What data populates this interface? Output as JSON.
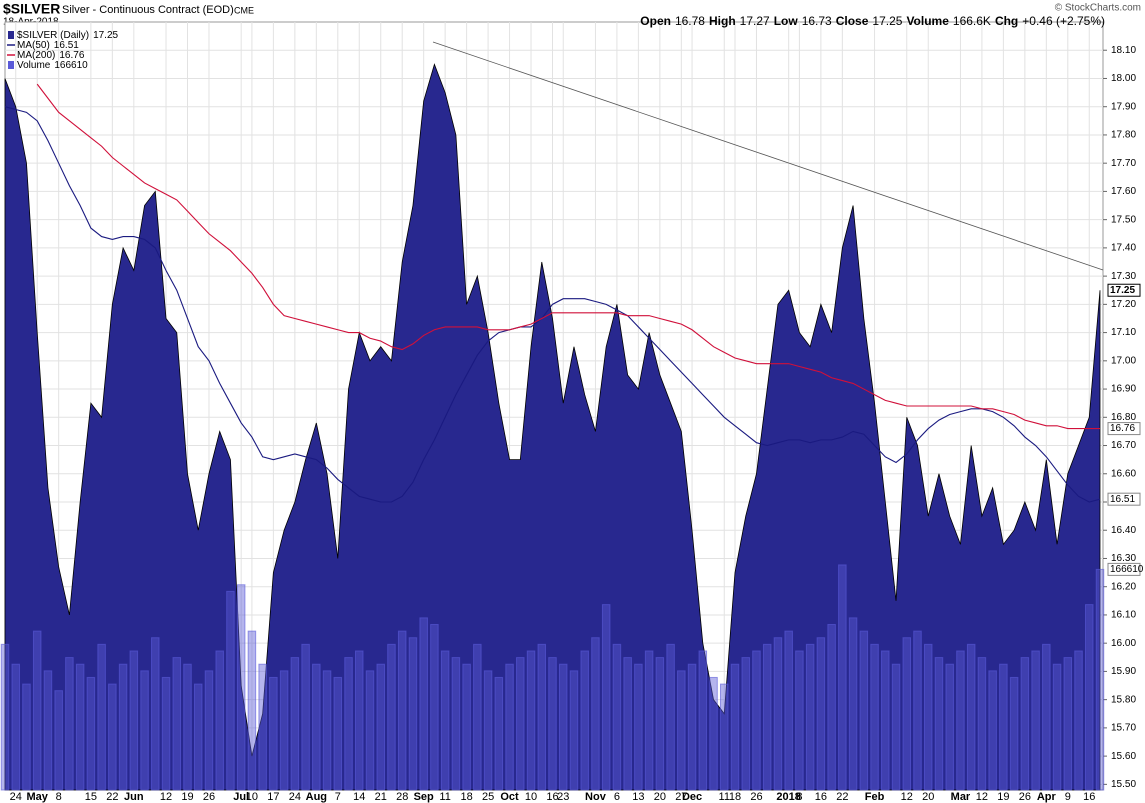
{
  "header": {
    "symbol": "$SILVER",
    "name": "Silver - Continuous Contract (EOD)",
    "exchange": "CME",
    "date": "18-Apr-2018",
    "copyright": "© StockCharts.com",
    "quote": [
      {
        "label": "Open",
        "value": "16.78"
      },
      {
        "label": "High",
        "value": "17.27"
      },
      {
        "label": "Low",
        "value": "16.73"
      },
      {
        "label": "Close",
        "value": "17.25"
      },
      {
        "label": "Volume",
        "value": "166.6K"
      },
      {
        "label": "Chg",
        "value": "+0.46 (+2.75%)"
      }
    ]
  },
  "chart_data": {
    "type": "area",
    "categories": [
      null,
      "24",
      null,
      "May",
      null,
      "8",
      null,
      null,
      "15",
      null,
      "22",
      null,
      "Jun",
      null,
      null,
      "12",
      null,
      "19",
      null,
      "26",
      null,
      null,
      "Jul",
      "10",
      null,
      "17",
      null,
      "24",
      null,
      "Aug",
      null,
      "7",
      null,
      "14",
      null,
      "21",
      null,
      "28",
      null,
      "Sep",
      null,
      "11",
      null,
      "18",
      null,
      "25",
      null,
      "Oct",
      null,
      "10",
      null,
      "16",
      "23",
      null,
      null,
      "Nov",
      null,
      "6",
      null,
      "13",
      null,
      "20",
      null,
      "27",
      "Dec",
      null,
      null,
      "11",
      "18",
      null,
      "26",
      null,
      null,
      "2018",
      "8",
      null,
      "16",
      null,
      "22",
      null,
      null,
      "Feb",
      null,
      null,
      "12",
      null,
      "20",
      null,
      null,
      "Mar",
      null,
      "12",
      null,
      "19",
      null,
      "26",
      null,
      "Apr",
      null,
      "9",
      null,
      "16",
      null
    ],
    "ylim": [
      15.48,
      18.2
    ],
    "yticks": [
      {
        "value": 15.5,
        "label": "15.50"
      },
      {
        "value": 15.6,
        "label": "15.60"
      },
      {
        "value": 15.7,
        "label": "15.70"
      },
      {
        "value": 15.8,
        "label": "15.80"
      },
      {
        "value": 15.9,
        "label": "15.90"
      },
      {
        "value": 16.0,
        "label": "16.00"
      },
      {
        "value": 16.1,
        "label": "16.10"
      },
      {
        "value": 16.2,
        "label": "16.20"
      },
      {
        "value": 16.3,
        "label": "16.30"
      },
      {
        "value": 16.4,
        "label": "16.40"
      },
      {
        "value": 16.5,
        "label": "16.50"
      },
      {
        "value": 16.6,
        "label": "16.60"
      },
      {
        "value": 16.7,
        "label": "16.70"
      },
      {
        "value": 16.8,
        "label": "16.80"
      },
      {
        "value": 16.9,
        "label": "16.90"
      },
      {
        "value": 17.0,
        "label": "17.00"
      },
      {
        "value": 17.1,
        "label": "17.10"
      },
      {
        "value": 17.2,
        "label": "17.20"
      },
      {
        "value": 17.3,
        "label": "17.30"
      },
      {
        "value": 17.4,
        "label": "17.40"
      },
      {
        "value": 17.5,
        "label": "17.50"
      },
      {
        "value": 17.6,
        "label": "17.60"
      },
      {
        "value": 17.7,
        "label": "17.70"
      },
      {
        "value": 17.8,
        "label": "17.80"
      },
      {
        "value": 17.9,
        "label": "17.90"
      },
      {
        "value": 18.0,
        "label": "18.00"
      },
      {
        "value": 18.1,
        "label": "18.10"
      }
    ],
    "y2lim": [
      0,
      580000
    ],
    "grid": true,
    "series": [
      {
        "name": "$SILVER (Daily)",
        "last_label": "17.25",
        "color": "#28288f",
        "kind": "area",
        "values": [
          18.0,
          17.9,
          17.7,
          17.1,
          16.55,
          16.27,
          16.1,
          16.5,
          16.85,
          16.8,
          17.2,
          17.4,
          17.32,
          17.55,
          17.6,
          17.15,
          17.1,
          16.6,
          16.4,
          16.6,
          16.75,
          16.65,
          15.85,
          15.6,
          15.75,
          16.25,
          16.4,
          16.5,
          16.65,
          16.78,
          16.6,
          16.3,
          16.9,
          17.1,
          17.0,
          17.05,
          17.0,
          17.35,
          17.55,
          17.92,
          18.05,
          17.95,
          17.8,
          17.2,
          17.3,
          17.1,
          16.85,
          16.65,
          16.65,
          17.05,
          17.35,
          17.15,
          16.85,
          17.05,
          16.88,
          16.75,
          17.05,
          17.2,
          16.95,
          16.9,
          17.1,
          16.95,
          16.85,
          16.75,
          16.4,
          16.0,
          15.8,
          15.75,
          16.25,
          16.45,
          16.6,
          16.9,
          17.2,
          17.25,
          17.1,
          17.05,
          17.2,
          17.1,
          17.4,
          17.55,
          17.15,
          16.85,
          16.5,
          16.15,
          16.8,
          16.7,
          16.45,
          16.6,
          16.45,
          16.35,
          16.7,
          16.45,
          16.55,
          16.35,
          16.4,
          16.5,
          16.4,
          16.65,
          16.35,
          16.6,
          16.7,
          16.8,
          17.25
        ]
      },
      {
        "name": "MA(50)",
        "last_label": "16.51",
        "color": "#1a1a80",
        "kind": "line",
        "values": [
          17.9,
          17.89,
          17.88,
          17.85,
          17.78,
          17.7,
          17.62,
          17.55,
          17.47,
          17.44,
          17.43,
          17.44,
          17.44,
          17.43,
          17.4,
          17.32,
          17.25,
          17.15,
          17.05,
          17.0,
          16.92,
          16.85,
          16.78,
          16.73,
          16.66,
          16.65,
          16.66,
          16.67,
          16.66,
          16.65,
          16.62,
          16.58,
          16.55,
          16.52,
          16.51,
          16.5,
          16.5,
          16.52,
          16.57,
          16.65,
          16.72,
          16.8,
          16.88,
          16.95,
          17.02,
          17.07,
          17.1,
          17.11,
          17.12,
          17.12,
          17.15,
          17.2,
          17.22,
          17.22,
          17.22,
          17.21,
          17.2,
          17.18,
          17.16,
          17.12,
          17.08,
          17.04,
          17.0,
          16.96,
          16.92,
          16.88,
          16.84,
          16.8,
          16.77,
          16.74,
          16.71,
          16.7,
          16.71,
          16.72,
          16.72,
          16.71,
          16.72,
          16.72,
          16.73,
          16.75,
          16.74,
          16.7,
          16.66,
          16.64,
          16.67,
          16.72,
          16.76,
          16.79,
          16.81,
          16.82,
          16.83,
          16.83,
          16.82,
          16.8,
          16.77,
          16.73,
          16.7,
          16.66,
          16.61,
          16.56,
          16.52,
          16.5,
          16.51
        ]
      },
      {
        "name": "MA(200)",
        "last_label": "16.76",
        "color": "#d0103a",
        "kind": "line",
        "values": [
          null,
          null,
          null,
          17.98,
          17.93,
          17.88,
          17.85,
          17.82,
          17.79,
          17.76,
          17.72,
          17.69,
          17.66,
          17.63,
          17.61,
          17.59,
          17.57,
          17.53,
          17.49,
          17.45,
          17.42,
          17.39,
          17.35,
          17.31,
          17.26,
          17.2,
          17.16,
          17.15,
          17.14,
          17.13,
          17.12,
          17.11,
          17.1,
          17.1,
          17.08,
          17.07,
          17.05,
          17.04,
          17.06,
          17.09,
          17.11,
          17.12,
          17.12,
          17.12,
          17.12,
          17.11,
          17.11,
          17.11,
          17.12,
          17.13,
          17.15,
          17.17,
          17.17,
          17.17,
          17.17,
          17.17,
          17.17,
          17.17,
          17.16,
          17.16,
          17.16,
          17.15,
          17.14,
          17.13,
          17.11,
          17.08,
          17.05,
          17.03,
          17.01,
          17.0,
          16.99,
          16.99,
          16.99,
          16.99,
          16.98,
          16.97,
          16.96,
          16.94,
          16.93,
          16.92,
          16.9,
          16.88,
          16.86,
          16.85,
          16.84,
          16.84,
          16.84,
          16.84,
          16.84,
          16.84,
          16.84,
          16.83,
          16.83,
          16.82,
          16.81,
          16.79,
          16.78,
          16.77,
          16.77,
          16.76,
          16.76,
          16.76,
          16.76
        ]
      },
      {
        "name": "Volume",
        "last_label": "166610",
        "color": "#5a5ad8",
        "kind": "bar",
        "axis": "y2",
        "values": [
          110000,
          95000,
          80000,
          120000,
          90000,
          75000,
          100000,
          95000,
          85000,
          110000,
          80000,
          95000,
          105000,
          90000,
          115000,
          85000,
          100000,
          95000,
          80000,
          90000,
          105000,
          150000,
          155000,
          120000,
          95000,
          85000,
          90000,
          100000,
          110000,
          95000,
          90000,
          85000,
          100000,
          105000,
          90000,
          95000,
          110000,
          120000,
          115000,
          130000,
          125000,
          105000,
          100000,
          95000,
          110000,
          90000,
          85000,
          95000,
          100000,
          105000,
          110000,
          100000,
          95000,
          90000,
          105000,
          115000,
          140000,
          110000,
          100000,
          95000,
          105000,
          100000,
          110000,
          90000,
          95000,
          105000,
          85000,
          80000,
          95000,
          100000,
          105000,
          110000,
          115000,
          120000,
          105000,
          110000,
          115000,
          125000,
          170000,
          130000,
          120000,
          110000,
          105000,
          95000,
          115000,
          120000,
          110000,
          100000,
          95000,
          105000,
          110000,
          100000,
          90000,
          95000,
          85000,
          100000,
          105000,
          110000,
          95000,
          100000,
          105000,
          140000,
          166610
        ]
      }
    ]
  }
}
